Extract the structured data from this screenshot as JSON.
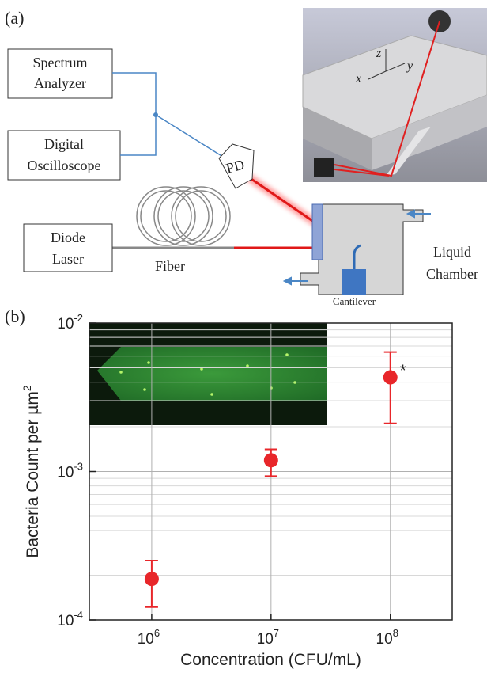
{
  "diagram": {
    "panel_label": "(a)",
    "spectrum_analyzer": [
      "Spectrum",
      "Analyzer"
    ],
    "oscilloscope": [
      "Digital",
      "Oscilloscope"
    ],
    "diode_laser": [
      "Diode",
      "Laser"
    ],
    "fiber": "Fiber",
    "photodiode": "PD",
    "chamber": [
      "Liquid",
      "Chamber"
    ],
    "cantilever": "Cantilever",
    "axes": [
      "x",
      "y",
      "z"
    ]
  },
  "chart_data": {
    "type": "scatter",
    "panel_label": "(b)",
    "x_label": "Concentration (CFU/mL)",
    "y_label": "Bacteria Count  per µm",
    "y_label_sup": "2",
    "x": [
      1000000,
      10000000,
      100000000
    ],
    "values": [
      0.000189,
      0.00119,
      0.00431
    ],
    "error_lower": [
      0.000122,
      0.00093,
      0.00211
    ],
    "error_upper": [
      0.000251,
      0.00141,
      0.00638
    ],
    "color": "#e8262a",
    "annotation": "*",
    "xlog": true,
    "ylog": true,
    "xlim": [
      300000,
      330000000
    ],
    "ylim": [
      0.0001,
      0.01
    ],
    "xticks": [
      {
        "value": 1000000,
        "label": "10",
        "exp": "6"
      },
      {
        "value": 10000000,
        "label": "10",
        "exp": "7"
      },
      {
        "value": 100000000,
        "label": "10",
        "exp": "8"
      }
    ],
    "yticks": [
      {
        "value": 0.0001,
        "label": "10",
        "exp": "-4"
      },
      {
        "value": 0.001,
        "label": "10",
        "exp": "-3"
      },
      {
        "value": 0.01,
        "label": "10",
        "exp": "-2"
      }
    ],
    "grid": true
  }
}
